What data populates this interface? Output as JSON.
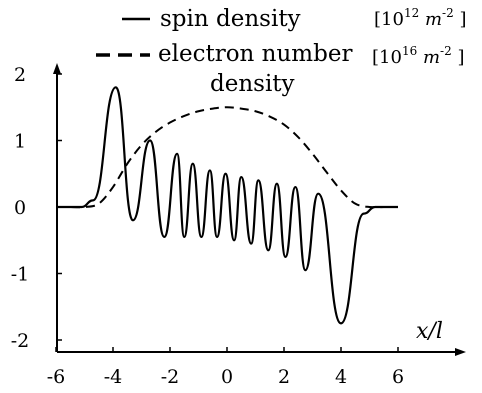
{
  "chart_data": {
    "type": "line",
    "title": "",
    "xlabel": "x/l",
    "ylabel": "",
    "xlim": [
      -6,
      7
    ],
    "ylim": [
      -2,
      2
    ],
    "x_ticks": [
      -6,
      -4,
      -2,
      0,
      2,
      4,
      6
    ],
    "y_ticks": [
      -2,
      -1,
      0,
      1,
      2
    ],
    "grid": false,
    "legend_position": "top",
    "series": [
      {
        "name": "spin density",
        "style": "solid",
        "units": {
          "base": "[10",
          "exp": "12",
          "tail": " m",
          "tail_exp": "-2",
          "close": " ]"
        },
        "peaks": [
          {
            "x": -3.9,
            "y": 1.8
          },
          {
            "x": -2.7,
            "y": 1.0
          },
          {
            "x": -1.75,
            "y": 0.8
          },
          {
            "x": -1.2,
            "y": 0.65
          },
          {
            "x": -0.6,
            "y": 0.55
          },
          {
            "x": -0.05,
            "y": 0.5
          },
          {
            "x": 0.5,
            "y": 0.45
          },
          {
            "x": 1.1,
            "y": 0.4
          },
          {
            "x": 1.75,
            "y": 0.35
          },
          {
            "x": 2.4,
            "y": 0.3
          },
          {
            "x": 3.2,
            "y": 0.2
          }
        ],
        "troughs": [
          {
            "x": -3.3,
            "y": -0.2
          },
          {
            "x": -2.2,
            "y": -0.45
          },
          {
            "x": -1.5,
            "y": -0.45
          },
          {
            "x": -0.9,
            "y": -0.45
          },
          {
            "x": -0.35,
            "y": -0.45
          },
          {
            "x": 0.25,
            "y": -0.5
          },
          {
            "x": 0.85,
            "y": -0.55
          },
          {
            "x": 1.45,
            "y": -0.65
          },
          {
            "x": 2.05,
            "y": -0.75
          },
          {
            "x": 2.75,
            "y": -0.95
          },
          {
            "x": 4.0,
            "y": -1.75
          }
        ]
      },
      {
        "name": "electron number density",
        "style": "dashed",
        "units": {
          "base": "[10",
          "exp": "16",
          "tail": " m",
          "tail_exp": "-2",
          "close": " ]"
        },
        "x": [
          -5.5,
          -5.0,
          -4.5,
          -4.0,
          -3.5,
          -3.0,
          -2.5,
          -2.0,
          -1.5,
          -1.0,
          -0.5,
          0,
          0.5,
          1.0,
          1.5,
          2.0,
          2.5,
          3.0,
          3.5,
          4.0,
          4.5,
          5.0,
          5.5
        ],
        "y": [
          0.0,
          0.0,
          0.05,
          0.3,
          0.65,
          0.93,
          1.13,
          1.27,
          1.37,
          1.44,
          1.48,
          1.5,
          1.48,
          1.44,
          1.36,
          1.24,
          1.05,
          0.8,
          0.52,
          0.25,
          0.05,
          0.0,
          0.0
        ]
      }
    ],
    "legend": {
      "line1": "spin density",
      "line2a": "electron number",
      "line2b": "density"
    }
  }
}
